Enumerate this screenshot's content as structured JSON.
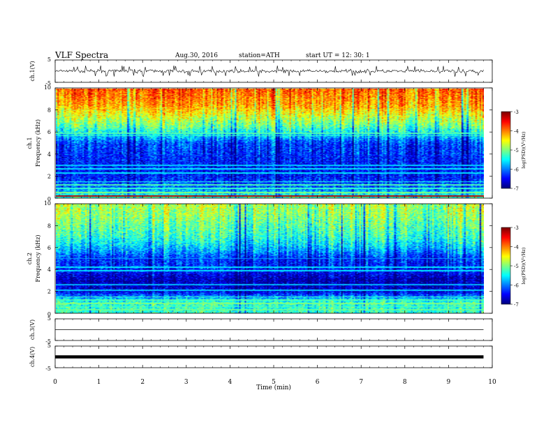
{
  "header": {
    "title": "VLF  Spectra",
    "date": "Aug.30, 2016",
    "station": "station=ATH",
    "start": "start  UT =   12: 30: 1"
  },
  "colors": {
    "jet_low": "#00008f",
    "jet_high": "#8f0000",
    "trace": "#000000"
  },
  "chart_data": [
    {
      "type": "line",
      "panel": "ch1-waveform",
      "ylabel": "ch.1(V)",
      "ylim": [
        -5,
        5
      ],
      "yticks": [
        "5",
        "-5"
      ],
      "x_range_min": [
        0,
        9.8
      ],
      "baseline_v": 0,
      "amplitude_v": [
        -2.5,
        2.5
      ]
    },
    {
      "type": "heatmap",
      "panel": "ch1-spectrogram",
      "ylabel": "ch.1\nFrequency  (kHz)",
      "ylim": [
        0,
        10
      ],
      "yticks": [
        "0",
        "2",
        "4",
        "6",
        "8",
        "10"
      ],
      "x_range_min": [
        0,
        9.8
      ],
      "colorbar": {
        "label": "log(PSD)(V²/Hz)",
        "range": [
          -7,
          -3
        ],
        "ticks": [
          "-3",
          "-4",
          "-5",
          "-6",
          "-7"
        ]
      },
      "profile_khz": [
        0,
        1,
        2,
        3,
        4,
        5,
        5.8,
        6.5,
        7.5,
        8.5,
        10
      ],
      "profile_log_psd": [
        -5.2,
        -6.1,
        -6.4,
        -6.4,
        -6.3,
        -6.2,
        -5.6,
        -5.1,
        -4.6,
        -4.1,
        -3.8
      ],
      "lines_khz": [
        0.2,
        0.5,
        0.9,
        1.2,
        1.5,
        2.3,
        2.7,
        3.0,
        5.7,
        5.9
      ],
      "lines_log_psd": [
        -3.2,
        -5.0,
        -5.3,
        -5.2,
        -5.4,
        -5.6,
        -5.6,
        -5.7,
        -5.3,
        -5.2
      ]
    },
    {
      "type": "heatmap",
      "panel": "ch2-spectrogram",
      "ylabel": "ch.2\nFrequency  (kHz)",
      "ylim": [
        0,
        10
      ],
      "yticks": [
        "0",
        "2",
        "4",
        "6",
        "8",
        "10"
      ],
      "x_range_min": [
        0,
        9.8
      ],
      "colorbar": {
        "label": "log(PSD)(V²/Hz)",
        "range": [
          -7,
          -3
        ],
        "ticks": [
          "-3",
          "-4",
          "-5",
          "-6",
          "-7"
        ]
      },
      "profile_khz": [
        0,
        1,
        2,
        3,
        4,
        5,
        6,
        7,
        8,
        9,
        10
      ],
      "profile_log_psd": [
        -5.3,
        -5.3,
        -6.6,
        -6.8,
        -6.4,
        -6.3,
        -5.7,
        -5.3,
        -5.1,
        -4.9,
        -4.8
      ],
      "lines_khz": [
        0.3,
        0.6,
        0.9,
        1.2,
        1.5,
        2.1,
        2.6,
        3.9,
        4.2,
        5.0
      ],
      "lines_log_psd": [
        -5.1,
        -5.2,
        -5.0,
        -5.2,
        -5.3,
        -5.7,
        -5.8,
        -5.6,
        -5.6,
        -5.9
      ]
    },
    {
      "type": "line",
      "panel": "ch3-waveform",
      "ylabel": "ch.3(V)",
      "ylim": [
        -5,
        5
      ],
      "yticks": [
        "5",
        "-5"
      ],
      "x_range_min": [
        0,
        9.8
      ],
      "level_v": 0
    },
    {
      "type": "line",
      "panel": "ch4-waveform",
      "ylabel": "ch.4(V)",
      "ylim": [
        -5,
        5
      ],
      "yticks": [
        "5",
        "-5"
      ],
      "x_range_min": [
        0,
        9.8
      ],
      "level_v": 0
    }
  ],
  "x_axis": {
    "label": "Time  (min)",
    "xlim": [
      0,
      10
    ],
    "ticks": [
      "0",
      "1",
      "2",
      "3",
      "4",
      "5",
      "6",
      "7",
      "8",
      "9",
      "10"
    ]
  }
}
